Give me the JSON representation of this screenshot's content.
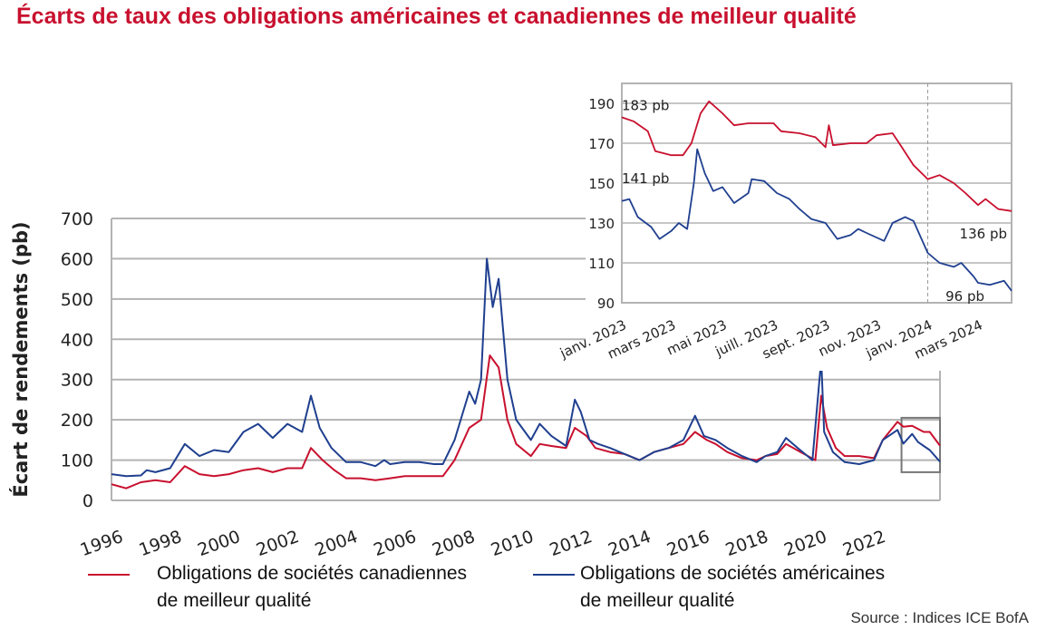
{
  "title": "Écarts de taux des obligations américaines et canadiennes de meilleur qualité",
  "source": "Source : Indices ICE BofA",
  "colors": {
    "canada": "#c8102e",
    "us": "#1f3f8f",
    "grid": "#b3b3b3"
  },
  "legend": [
    {
      "line1": "Obligations de sociétés canadiennes",
      "line2": "de meilleur qualité",
      "color": "#c8102e"
    },
    {
      "line1": "Obligations de sociétés américaines",
      "line2": "de meilleur qualité",
      "color": "#1f3f8f"
    }
  ],
  "chart_data": [
    {
      "type": "line",
      "ylabel": "Écart de rendements (pb)",
      "ylim": [
        0,
        700
      ],
      "yticks": [
        0,
        100,
        200,
        300,
        400,
        500,
        600,
        700
      ],
      "xlim": [
        1996,
        2024.25
      ],
      "xticks": [
        "1996",
        "1998",
        "2000",
        "2002",
        "2004",
        "2006",
        "2008",
        "2010",
        "2012",
        "2014",
        "2016",
        "2018",
        "2020",
        "2022"
      ],
      "grid": true,
      "legend_position": "bottom",
      "series": [
        {
          "name": "Obligations de sociétés canadiennes de meilleur qualité",
          "color": "#c8102e",
          "x": [
            1996.0,
            1996.5,
            1997.0,
            1997.5,
            1998.0,
            1998.5,
            1999.0,
            1999.5,
            2000.0,
            2000.5,
            2001.0,
            2001.5,
            2002.0,
            2002.5,
            2002.8,
            2003.2,
            2003.6,
            2004.0,
            2004.5,
            2005.0,
            2005.5,
            2006.0,
            2007.0,
            2007.3,
            2007.7,
            2008.2,
            2008.6,
            2008.9,
            2009.2,
            2009.5,
            2009.8,
            2010.3,
            2010.6,
            2011.0,
            2011.5,
            2011.8,
            2012.2,
            2012.5,
            2013.0,
            2013.5,
            2014.0,
            2014.5,
            2015.0,
            2015.5,
            2015.9,
            2016.3,
            2016.6,
            2017.0,
            2017.5,
            2018.0,
            2018.3,
            2018.7,
            2019.0,
            2019.5,
            2020.0,
            2020.2,
            2020.4,
            2020.7,
            2021.0,
            2021.5,
            2022.0,
            2022.3,
            2022.8,
            2023.0,
            2023.3,
            2023.7,
            2023.9,
            2024.25
          ],
          "y": [
            40,
            30,
            45,
            50,
            45,
            85,
            65,
            60,
            65,
            75,
            80,
            70,
            80,
            80,
            130,
            100,
            75,
            55,
            55,
            50,
            55,
            60,
            60,
            60,
            100,
            180,
            200,
            360,
            330,
            200,
            140,
            110,
            140,
            135,
            130,
            180,
            160,
            130,
            120,
            115,
            100,
            120,
            130,
            140,
            170,
            150,
            140,
            120,
            105,
            100,
            110,
            115,
            140,
            120,
            100,
            260,
            180,
            130,
            110,
            110,
            105,
            150,
            195,
            183,
            185,
            170,
            170,
            136
          ]
        },
        {
          "name": "Obligations de sociétés américaines de meilleur qualité",
          "color": "#1f3f8f",
          "x": [
            1996.0,
            1996.5,
            1997.0,
            1997.2,
            1997.5,
            1998.0,
            1998.5,
            1999.0,
            1999.5,
            2000.0,
            2000.5,
            2001.0,
            2001.5,
            2002.0,
            2002.5,
            2002.8,
            2003.1,
            2003.5,
            2004.0,
            2004.5,
            2005.0,
            2005.3,
            2005.5,
            2006.0,
            2006.5,
            2007.0,
            2007.3,
            2007.7,
            2008.2,
            2008.4,
            2008.6,
            2008.8,
            2009.0,
            2009.2,
            2009.5,
            2009.8,
            2010.3,
            2010.6,
            2011.0,
            2011.5,
            2011.8,
            2012.0,
            2012.3,
            2012.6,
            2013.0,
            2013.5,
            2014.0,
            2014.5,
            2015.0,
            2015.5,
            2015.9,
            2016.2,
            2016.6,
            2017.0,
            2017.5,
            2018.0,
            2018.3,
            2018.7,
            2019.0,
            2019.4,
            2019.9,
            2020.2,
            2020.3,
            2020.6,
            2021.0,
            2021.5,
            2022.0,
            2022.3,
            2022.8,
            2023.0,
            2023.3,
            2023.5,
            2023.9,
            2024.25
          ],
          "y": [
            65,
            60,
            62,
            75,
            70,
            80,
            140,
            110,
            125,
            120,
            170,
            190,
            155,
            190,
            170,
            260,
            180,
            130,
            95,
            95,
            85,
            100,
            90,
            95,
            95,
            90,
            90,
            150,
            270,
            240,
            300,
            600,
            480,
            550,
            300,
            200,
            150,
            190,
            160,
            135,
            250,
            220,
            150,
            140,
            130,
            115,
            100,
            120,
            130,
            150,
            210,
            160,
            150,
            130,
            110,
            95,
            110,
            120,
            155,
            130,
            100,
            350,
            170,
            120,
            95,
            90,
            100,
            150,
            175,
            141,
            165,
            145,
            125,
            96
          ]
        }
      ],
      "annotation_box": {
        "x": [
          2023.0,
          2024.25
        ],
        "y": [
          70,
          205
        ]
      }
    },
    {
      "type": "line",
      "ylim": [
        90,
        200
      ],
      "yticks": [
        90,
        110,
        130,
        150,
        170,
        190
      ],
      "xlim": [
        "2023-01-01",
        "2024-04-10"
      ],
      "xticks": [
        {
          "date": "2023-01-01",
          "label": "janv. 2023"
        },
        {
          "date": "2023-03-01",
          "label": "mars 2023"
        },
        {
          "date": "2023-05-01",
          "label": "mai 2023"
        },
        {
          "date": "2023-07-01",
          "label": "juill. 2023"
        },
        {
          "date": "2023-09-01",
          "label": "sept. 2023"
        },
        {
          "date": "2023-11-01",
          "label": "nov. 2023"
        },
        {
          "date": "2024-01-01",
          "label": "janv. 2024"
        },
        {
          "date": "2024-03-01",
          "label": "mars 2024"
        }
      ],
      "reference_line": "2024-01-01",
      "grid": true,
      "annotations": [
        {
          "text": "183 pb",
          "date": "2023-01-01",
          "value": 183,
          "series": "canada"
        },
        {
          "text": "141 pb",
          "date": "2023-01-01",
          "value": 141,
          "series": "us"
        },
        {
          "text": "136 pb",
          "date": "2024-04-10",
          "value": 136,
          "series": "canada"
        },
        {
          "text": "96 pb",
          "date": "2024-04-10",
          "value": 96,
          "series": "us"
        }
      ],
      "series": [
        {
          "color": "#c8102e",
          "x": [
            "2023-01-01",
            "2023-01-15",
            "2023-02-01",
            "2023-02-10",
            "2023-03-01",
            "2023-03-15",
            "2023-03-25",
            "2023-04-05",
            "2023-04-15",
            "2023-05-01",
            "2023-05-15",
            "2023-06-01",
            "2023-07-01",
            "2023-07-10",
            "2023-08-01",
            "2023-08-20",
            "2023-09-01",
            "2023-09-05",
            "2023-09-10",
            "2023-10-01",
            "2023-10-20",
            "2023-11-01",
            "2023-11-20",
            "2023-12-01",
            "2023-12-15",
            "2024-01-01",
            "2024-01-15",
            "2024-02-01",
            "2024-02-15",
            "2024-03-01",
            "2024-03-10",
            "2024-03-25",
            "2024-04-10"
          ],
          "y": [
            183,
            181,
            176,
            166,
            164,
            164,
            170,
            185,
            191,
            185,
            179,
            180,
            180,
            176,
            175,
            173,
            168,
            179,
            169,
            170,
            170,
            174,
            175,
            168,
            159,
            152,
            154,
            150,
            145,
            139,
            142,
            137,
            136
          ]
        },
        {
          "color": "#1f3f8f",
          "x": [
            "2023-01-01",
            "2023-01-10",
            "2023-01-20",
            "2023-02-05",
            "2023-02-15",
            "2023-03-01",
            "2023-03-10",
            "2023-03-20",
            "2023-03-28",
            "2023-04-01",
            "2023-04-10",
            "2023-04-20",
            "2023-05-01",
            "2023-05-15",
            "2023-06-01",
            "2023-06-05",
            "2023-06-20",
            "2023-07-05",
            "2023-07-20",
            "2023-08-01",
            "2023-08-15",
            "2023-09-01",
            "2023-09-15",
            "2023-10-01",
            "2023-10-10",
            "2023-10-20",
            "2023-11-10",
            "2023-11-20",
            "2023-12-05",
            "2023-12-15",
            "2024-01-01",
            "2024-01-15",
            "2024-02-01",
            "2024-02-10",
            "2024-02-25",
            "2024-03-01",
            "2024-03-15",
            "2024-04-01",
            "2024-04-10"
          ],
          "y": [
            141,
            142,
            133,
            128,
            122,
            126,
            130,
            127,
            150,
            167,
            155,
            146,
            148,
            140,
            145,
            152,
            151,
            145,
            142,
            137,
            132,
            130,
            122,
            124,
            127,
            125,
            121,
            130,
            133,
            131,
            115,
            110,
            108,
            110,
            103,
            100,
            99,
            101,
            96
          ]
        }
      ]
    }
  ]
}
